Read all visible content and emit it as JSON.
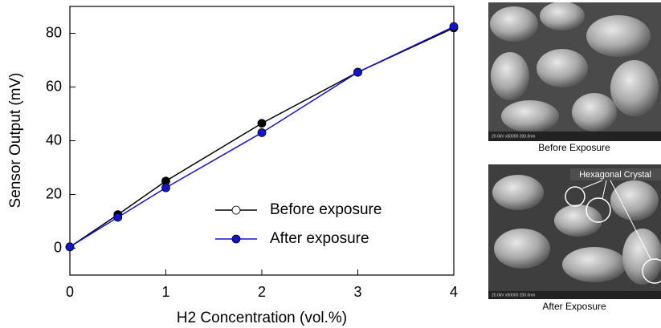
{
  "chart_data": {
    "type": "line",
    "xlabel": "H2 Concentration (vol.%)",
    "ylabel": "Sensor Output (mV)",
    "x": [
      0,
      0.5,
      1,
      2,
      3,
      4
    ],
    "series": [
      {
        "name": "Before exposure",
        "color": "#000000",
        "legend_marker_fill": "#ffffff",
        "values": [
          0.5,
          12.5,
          25,
          46.5,
          65.5,
          82
        ]
      },
      {
        "name": "After exposure",
        "color": "#1414c8",
        "legend_marker_fill": "#1414c8",
        "values": [
          0.5,
          11.5,
          22.5,
          43,
          65.5,
          82.5
        ]
      }
    ],
    "xlim": [
      0,
      4
    ],
    "xticks": [
      0,
      1,
      2,
      3,
      4
    ],
    "ylim": [
      -10,
      90
    ],
    "yticks": [
      0,
      20,
      40,
      60,
      80
    ],
    "legend": "lower right"
  },
  "images": [
    {
      "caption": "Before Exposure",
      "scale_text": "20.0kV  x50000  200.0nm"
    },
    {
      "caption": "After Exposure",
      "scale_text": "20.0kV  x50000  200.0nm",
      "annotation": "Hexagonal Crystal"
    }
  ]
}
